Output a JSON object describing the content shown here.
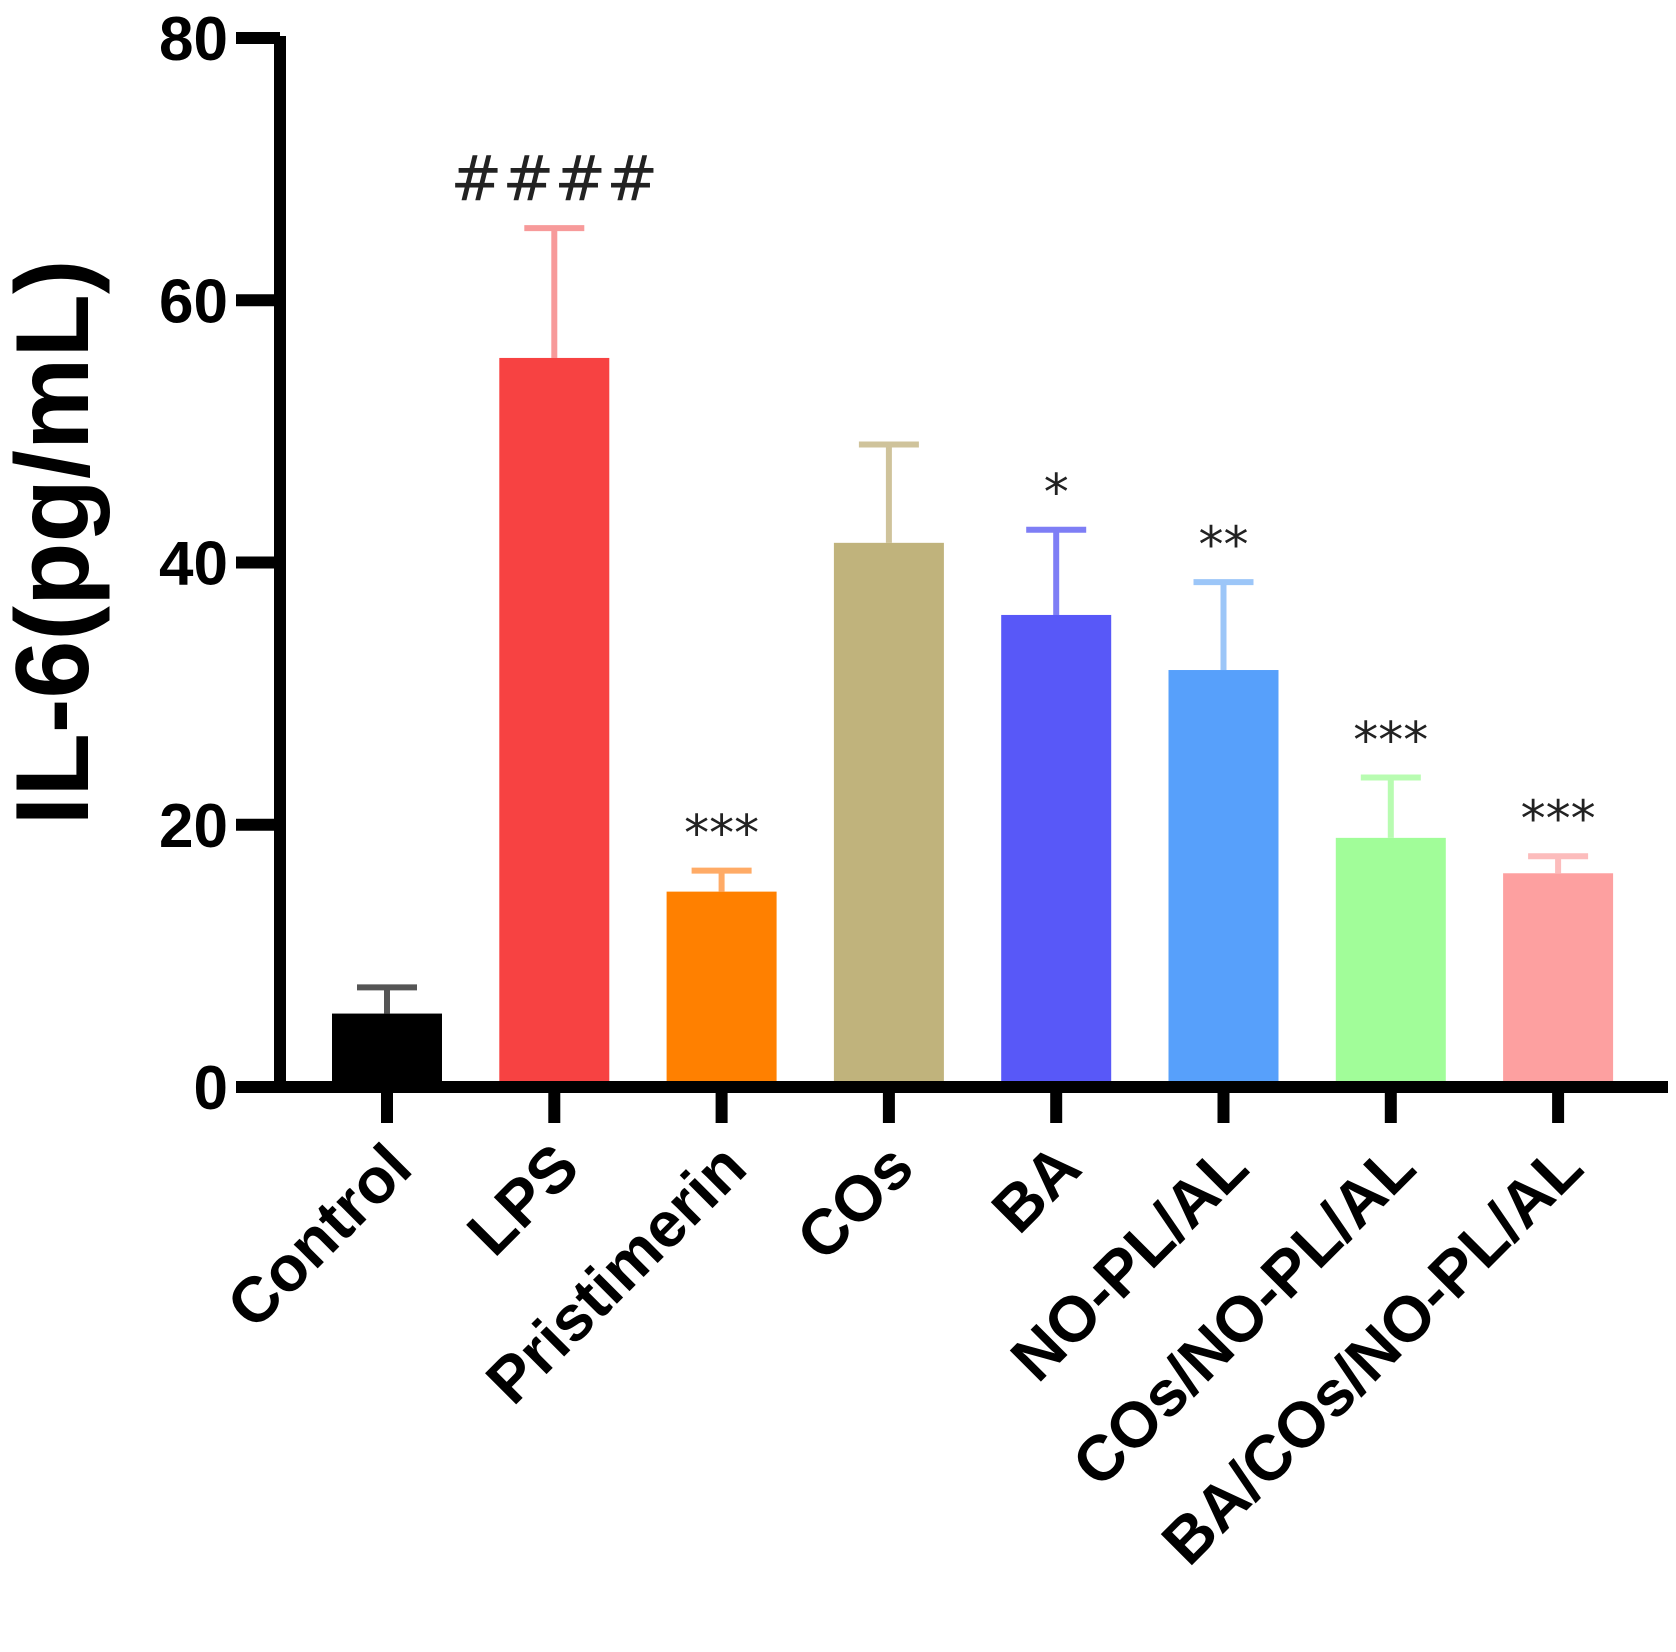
{
  "chart_data": {
    "type": "bar",
    "title": "",
    "xlabel": "",
    "ylabel": "IL-6(pg/mL)",
    "ylim": [
      0,
      80
    ],
    "yticks": [
      0,
      20,
      40,
      60,
      80
    ],
    "ytick_labels": [
      "0",
      "20",
      "40",
      "60",
      "80"
    ],
    "categories": [
      "Control",
      "LPS",
      "Pristimerin",
      "COs",
      "BA",
      "NO-PL/AL",
      "COs/NO-PL/AL",
      "BA/COs/NO-PL/AL"
    ],
    "values": [
      5.6,
      55.6,
      14.9,
      41.5,
      36.0,
      31.8,
      19.0,
      16.3
    ],
    "errors": [
      2.0,
      9.9,
      1.6,
      7.5,
      6.5,
      6.7,
      4.6,
      1.3
    ],
    "annotations": [
      "",
      "####",
      "***",
      "",
      "*",
      "**",
      "***",
      "***"
    ],
    "colors": [
      "#000000",
      "#f74242",
      "#ff8000",
      "#c0b37c",
      "#5858f8",
      "#57a0fb",
      "#a1fd99",
      "#fda0a0"
    ],
    "error_colors": [
      "#555555",
      "#f79a9a",
      "#ffab66",
      "#cfc39b",
      "#7e7ef5",
      "#9cc6f8",
      "#b8fcb1",
      "#fcbcbc"
    ],
    "grid": false,
    "legend": "none"
  }
}
